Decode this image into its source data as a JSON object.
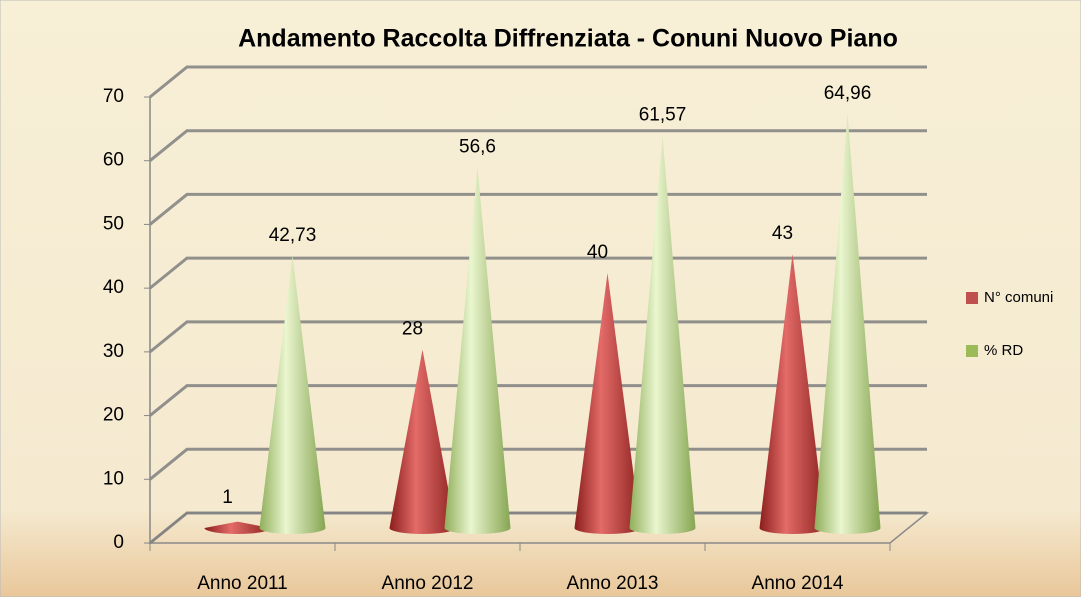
{
  "chart_data": {
    "type": "cone",
    "title": "Andamento Raccolta Diffrenziata - Conuni Nuovo Piano",
    "categories": [
      "Anno 2011",
      "Anno 2012",
      "Anno 2013",
      "Anno 2014"
    ],
    "series": [
      {
        "name": "N° comuni",
        "color": "#c0504d",
        "values": [
          1,
          28,
          40,
          43
        ]
      },
      {
        "name": "% RD",
        "color": "#9bbb59",
        "values": [
          42.73,
          56.6,
          61.57,
          64.96
        ],
        "value_labels": [
          "42,73",
          "56,6",
          "61,57",
          "64,96"
        ]
      }
    ],
    "ylim": [
      0,
      70
    ],
    "yticks": [
      0,
      10,
      20,
      30,
      40,
      50,
      60,
      70
    ],
    "grid": true,
    "legend": "right"
  }
}
